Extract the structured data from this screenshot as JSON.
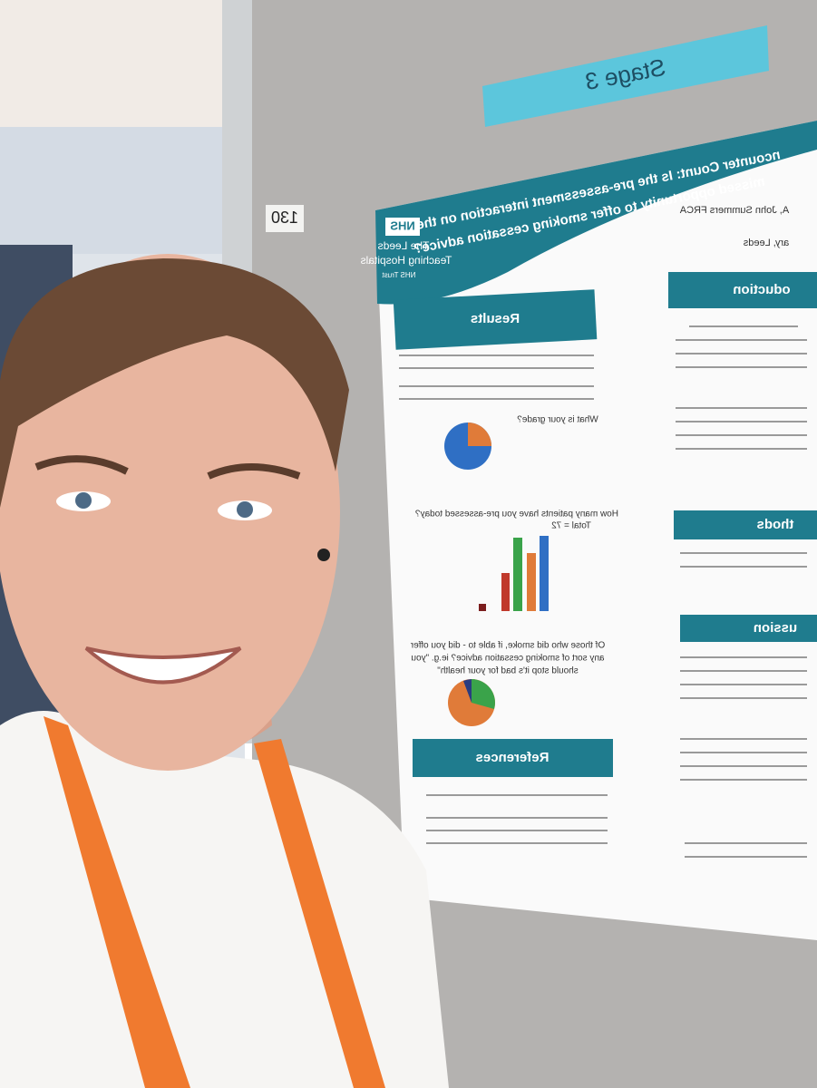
{
  "sign": {
    "stage": "Stage 3",
    "booth": "130"
  },
  "poster": {
    "title": [
      "ncounter Count: Is the pre-assessment interaction on the",
      "missed opportunity to offer smoking cessation advice?"
    ],
    "authors": [
      "A, John Summers FRCA",
      "ary, Leeds"
    ],
    "logo": {
      "nhs": "NHS",
      "trust": [
        "The Leeds",
        "Teaching Hospitals"
      ],
      "suffix": "NHS Trust"
    },
    "sections": {
      "introduction": "oduction",
      "methods": "thods",
      "discussion": "ussion",
      "results": "Results",
      "references": "References"
    },
    "questions": [
      "What is your grade?",
      "How many patients have you pre-assessed today?",
      "Total = 72",
      "Of those who did smoke, if able to - did you offer",
      "any sort of smoking cessation advice? ie.g. \"you",
      "should stop it's bad for your health\""
    ]
  }
}
